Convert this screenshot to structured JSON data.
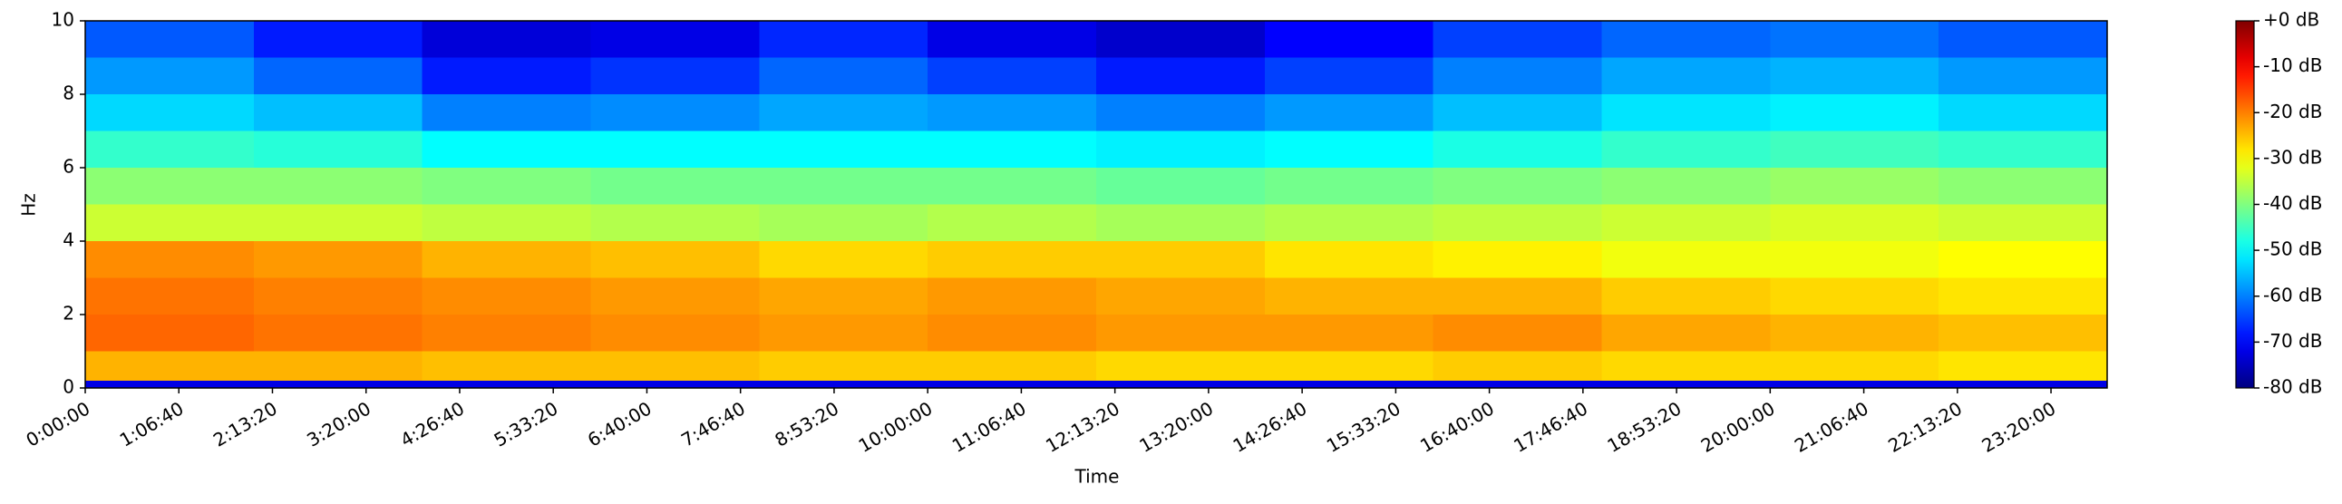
{
  "chart_data": {
    "type": "heatmap",
    "xlabel": "Time",
    "ylabel": "Hz",
    "xlim": [
      0,
      86400
    ],
    "xticks": [
      {
        "value": 0,
        "label": "0:00:00"
      },
      {
        "value": 4000,
        "label": "1:06:40"
      },
      {
        "value": 8000,
        "label": "2:13:20"
      },
      {
        "value": 12000,
        "label": "3:20:00"
      },
      {
        "value": 16000,
        "label": "4:26:40"
      },
      {
        "value": 20000,
        "label": "5:33:20"
      },
      {
        "value": 24000,
        "label": "6:40:00"
      },
      {
        "value": 28000,
        "label": "7:46:40"
      },
      {
        "value": 32000,
        "label": "8:53:20"
      },
      {
        "value": 36000,
        "label": "10:00:00"
      },
      {
        "value": 40000,
        "label": "11:06:40"
      },
      {
        "value": 44000,
        "label": "12:13:20"
      },
      {
        "value": 48000,
        "label": "13:20:00"
      },
      {
        "value": 52000,
        "label": "14:26:40"
      },
      {
        "value": 56000,
        "label": "15:33:20"
      },
      {
        "value": 60000,
        "label": "16:40:00"
      },
      {
        "value": 64000,
        "label": "17:46:40"
      },
      {
        "value": 68000,
        "label": "18:53:20"
      },
      {
        "value": 72000,
        "label": "20:00:00"
      },
      {
        "value": 76000,
        "label": "21:06:40"
      },
      {
        "value": 80000,
        "label": "22:13:20"
      },
      {
        "value": 84000,
        "label": "23:20:00"
      }
    ],
    "ylim": [
      0,
      10
    ],
    "yticks": [
      0,
      2,
      4,
      6,
      8,
      10
    ],
    "xbins": [
      0,
      7200,
      14400,
      21600,
      28800,
      36000,
      43200,
      50400,
      57600,
      64800,
      72000,
      79200,
      86400
    ],
    "ybins": [
      0,
      0.2,
      1,
      2,
      3,
      4,
      5,
      6,
      7,
      8,
      9,
      10
    ],
    "values": [
      [
        -72,
        -72,
        -72,
        -72,
        -72,
        -72,
        -72,
        -72,
        -72,
        -72,
        -72,
        -72
      ],
      [
        -24,
        -24,
        -25,
        -25,
        -26,
        -26,
        -27,
        -27,
        -26,
        -27,
        -27,
        -28
      ],
      [
        -18,
        -19,
        -20,
        -21,
        -22,
        -21,
        -22,
        -22,
        -21,
        -23,
        -24,
        -25
      ],
      [
        -19,
        -20,
        -21,
        -22,
        -23,
        -22,
        -23,
        -24,
        -24,
        -26,
        -27,
        -28
      ],
      [
        -21,
        -22,
        -24,
        -25,
        -27,
        -26,
        -26,
        -28,
        -29,
        -31,
        -31,
        -30
      ],
      [
        -34,
        -34,
        -35,
        -36,
        -37,
        -36,
        -37,
        -36,
        -35,
        -34,
        -33,
        -34
      ],
      [
        -39,
        -39,
        -40,
        -41,
        -41,
        -41,
        -42,
        -41,
        -40,
        -39,
        -38,
        -39
      ],
      [
        -46,
        -47,
        -50,
        -50,
        -50,
        -50,
        -51,
        -50,
        -48,
        -46,
        -45,
        -46
      ],
      [
        -53,
        -55,
        -60,
        -59,
        -57,
        -58,
        -60,
        -58,
        -55,
        -52,
        -51,
        -53
      ],
      [
        -58,
        -62,
        -68,
        -66,
        -62,
        -65,
        -68,
        -65,
        -60,
        -57,
        -56,
        -58
      ],
      [
        -63,
        -68,
        -73,
        -72,
        -67,
        -72,
        -74,
        -70,
        -65,
        -62,
        -61,
        -63
      ]
    ],
    "colormap": "jet",
    "clim": [
      -80,
      0
    ],
    "cticks": [
      {
        "value": 0,
        "label": "+0 dB"
      },
      {
        "value": -10,
        "label": "-10 dB"
      },
      {
        "value": -20,
        "label": "-20 dB"
      },
      {
        "value": -30,
        "label": "-30 dB"
      },
      {
        "value": -40,
        "label": "-40 dB"
      },
      {
        "value": -50,
        "label": "-50 dB"
      },
      {
        "value": -60,
        "label": "-60 dB"
      },
      {
        "value": -70,
        "label": "-70 dB"
      },
      {
        "value": -80,
        "label": "-80 dB"
      }
    ]
  }
}
